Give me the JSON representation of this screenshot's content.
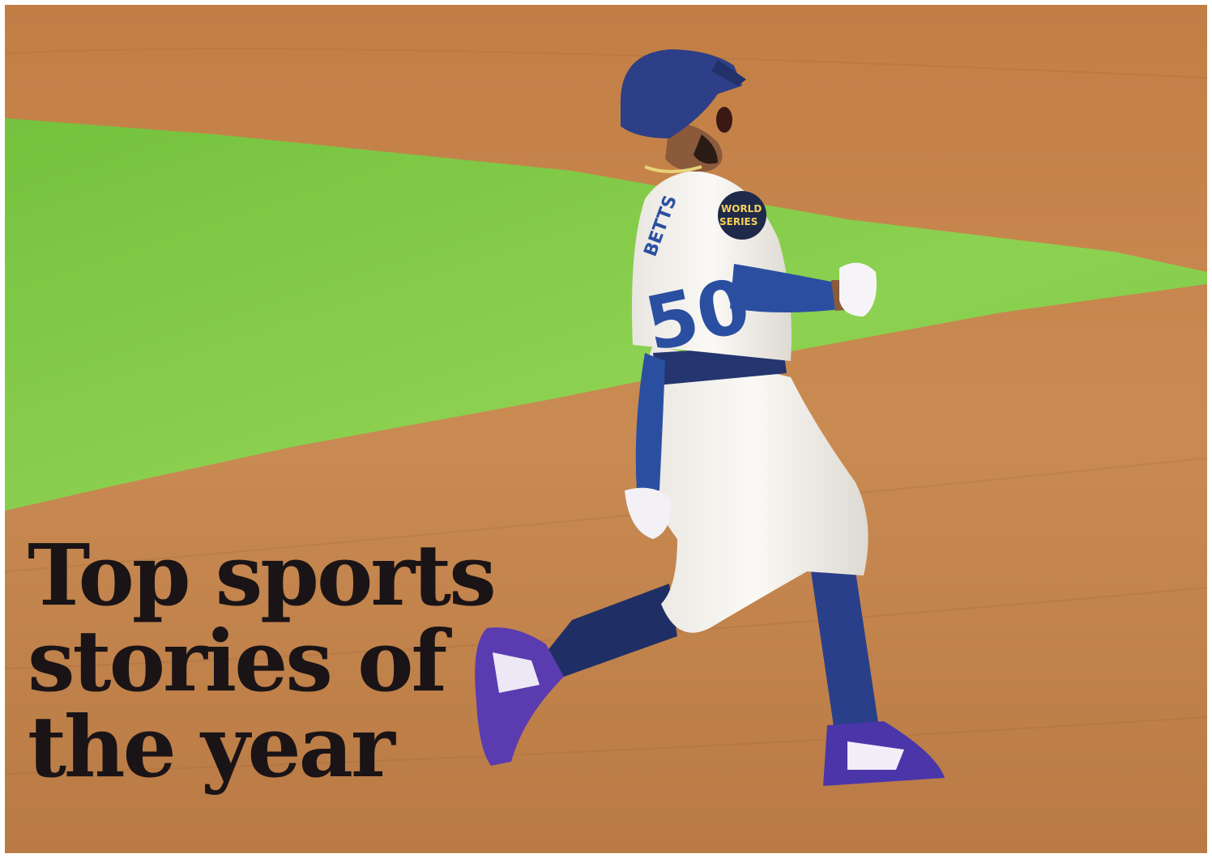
{
  "headline": {
    "line1": "Top sports",
    "line2": "stories of",
    "line3": "the year"
  },
  "photo": {
    "jersey_number": "50",
    "jersey_name": "BETTS",
    "patch_text_1": "WORLD",
    "patch_text_2": "SERIES",
    "colors": {
      "dirt": "#c98a4e",
      "grass": "#7fcb45",
      "uniform": "#f4f1ec",
      "dodger_blue": "#2b4fa0",
      "headline_ink": "#1a1416"
    }
  }
}
